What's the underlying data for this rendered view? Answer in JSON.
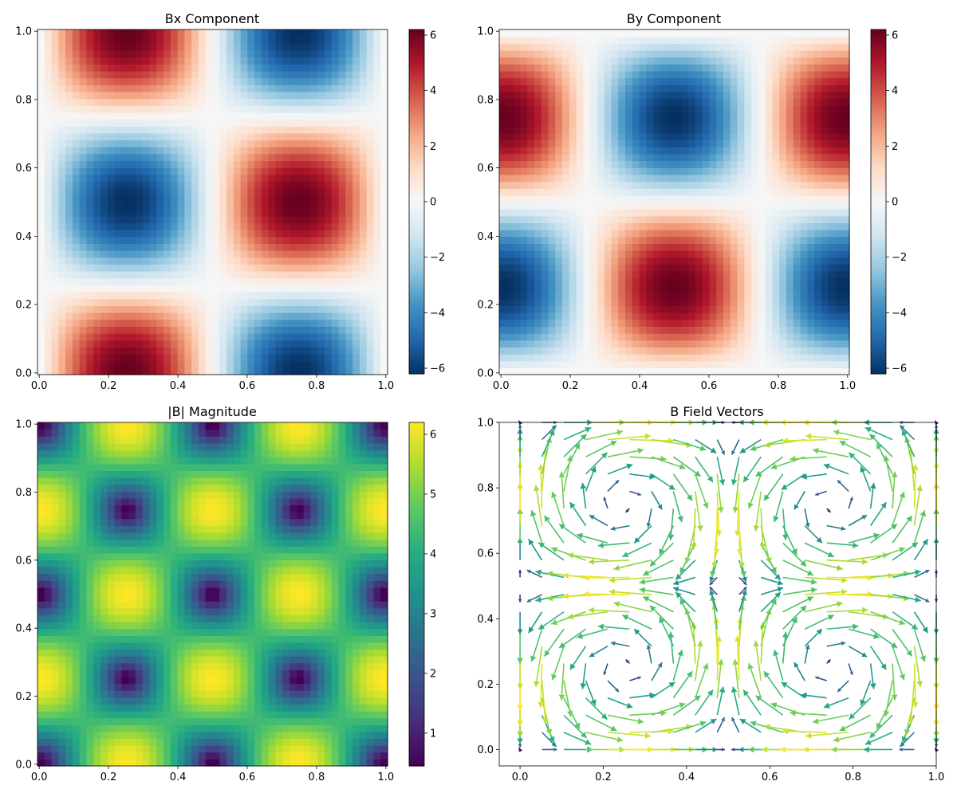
{
  "chart_data": [
    {
      "type": "heatmap",
      "title": "Bx Component",
      "field": "Bx",
      "colormap": "RdBu_r",
      "xlim": [
        -0.005,
        1.005
      ],
      "ylim": [
        -0.005,
        1.005
      ],
      "xticks": [
        0.0,
        0.2,
        0.4,
        0.6,
        0.8,
        1.0
      ],
      "yticks": [
        0.0,
        0.2,
        0.4,
        0.6,
        0.8,
        1.0
      ],
      "tick_labels": [
        "0.0",
        "0.2",
        "0.4",
        "0.6",
        "0.8",
        "1.0"
      ],
      "grid_n": 50,
      "peak_value": 6.2,
      "colorbar": {
        "range": [
          -6.2,
          6.2
        ],
        "ticks": [
          -6,
          -4,
          -2,
          0,
          2,
          4,
          6
        ],
        "labels": [
          "−6",
          "−4",
          "−2",
          "0",
          "2",
          "4",
          "6"
        ]
      },
      "grid": false
    },
    {
      "type": "heatmap",
      "title": "By Component",
      "field": "By",
      "colormap": "RdBu_r",
      "xlim": [
        -0.005,
        1.005
      ],
      "ylim": [
        -0.005,
        1.005
      ],
      "xticks": [
        0.0,
        0.2,
        0.4,
        0.6,
        0.8,
        1.0
      ],
      "yticks": [
        0.0,
        0.2,
        0.4,
        0.6,
        0.8,
        1.0
      ],
      "tick_labels": [
        "0.0",
        "0.2",
        "0.4",
        "0.6",
        "0.8",
        "1.0"
      ],
      "grid_n": 50,
      "peak_value": 6.2,
      "colorbar": {
        "range": [
          -6.2,
          6.2
        ],
        "ticks": [
          -6,
          -4,
          -2,
          0,
          2,
          4,
          6
        ],
        "labels": [
          "−6",
          "−4",
          "−2",
          "0",
          "2",
          "4",
          "6"
        ]
      },
      "grid": false
    },
    {
      "type": "heatmap",
      "title": "|B| Magnitude",
      "field": "magnitude",
      "colormap": "viridis",
      "xlim": [
        -0.005,
        1.005
      ],
      "ylim": [
        -0.005,
        1.005
      ],
      "xticks": [
        0.0,
        0.2,
        0.4,
        0.6,
        0.8,
        1.0
      ],
      "yticks": [
        0.0,
        0.2,
        0.4,
        0.6,
        0.8,
        1.0
      ],
      "tick_labels": [
        "0.0",
        "0.2",
        "0.4",
        "0.6",
        "0.8",
        "1.0"
      ],
      "grid_n": 50,
      "peak_value": 6.2,
      "colorbar": {
        "range": [
          0.45,
          6.2
        ],
        "ticks": [
          1,
          2,
          3,
          4,
          5,
          6
        ],
        "labels": [
          "1",
          "2",
          "3",
          "4",
          "5",
          "6"
        ]
      },
      "grid": false
    },
    {
      "type": "quiver",
      "title": "B Field Vectors",
      "field": "vectors",
      "colormap": "viridis",
      "xlim": [
        -0.05,
        1.0
      ],
      "ylim": [
        -0.05,
        1.0
      ],
      "xticks": [
        0.0,
        0.2,
        0.4,
        0.6,
        0.8,
        1.0
      ],
      "yticks": [
        0.0,
        0.2,
        0.4,
        0.6,
        0.8,
        1.0
      ],
      "tick_labels": [
        "0.0",
        "0.2",
        "0.4",
        "0.6",
        "0.8",
        "1.0"
      ],
      "vector_n": 20,
      "peak_value": 6.2,
      "grid": false
    }
  ]
}
